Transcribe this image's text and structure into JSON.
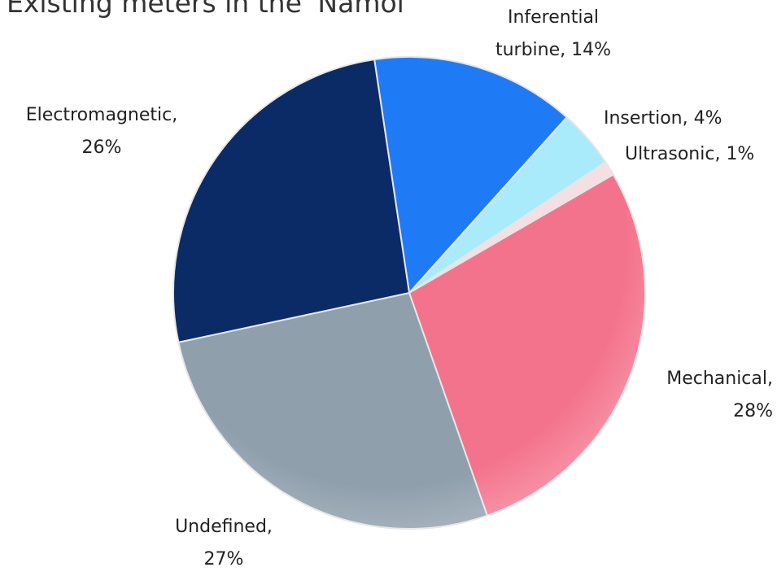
{
  "chart_data": {
    "type": "pie",
    "title": "Existing meters in the 'Namol",
    "categories": [
      "Inferential turbine,",
      "Insertion,",
      "Ultrasonic,",
      "Mechanical,",
      "Undefined,",
      "Electromagnetic,"
    ],
    "values": [
      14,
      4,
      1,
      28,
      27,
      26
    ],
    "value_labels": [
      "14%",
      "4%",
      "1%",
      "28%",
      "27%",
      "26%"
    ],
    "colors": [
      "#1f7bf5",
      "#a9ebfb",
      "#f4dfe3",
      "#f4738c",
      "#8f9fac",
      "#0b2b66"
    ]
  }
}
